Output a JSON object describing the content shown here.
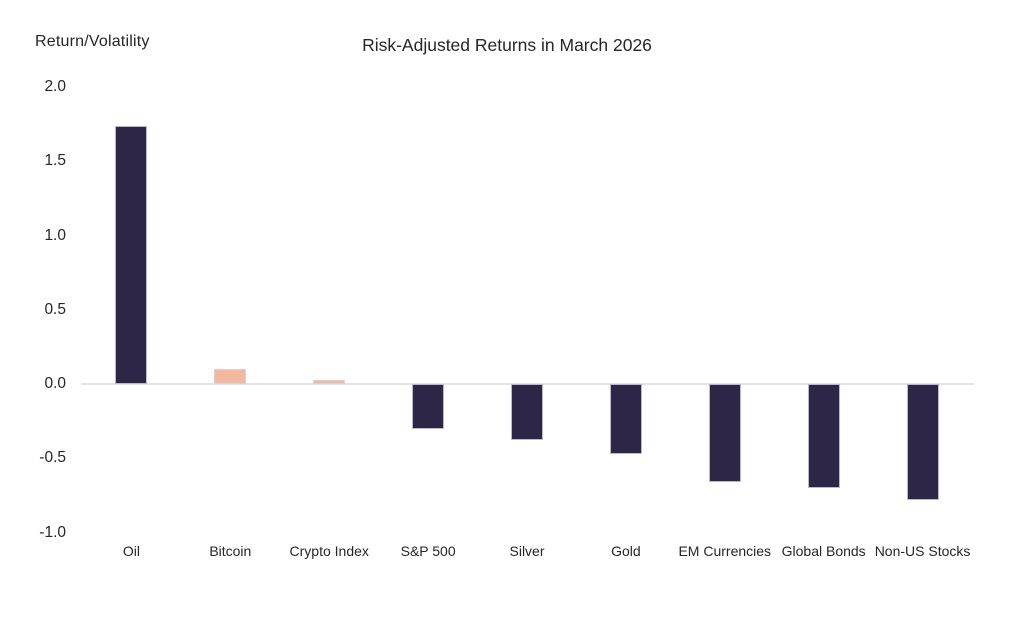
{
  "chart_data": {
    "type": "bar",
    "title": "Risk-Adjusted Returns in March 2026",
    "axis_label": "Return/Volatility",
    "xlabel": "",
    "ylabel": "Return/Volatility",
    "categories": [
      "Oil",
      "Bitcoin",
      "Crypto Index",
      "S&P 500",
      "Silver",
      "Gold",
      "EM Currencies",
      "Global Bonds",
      "Non-US Stocks"
    ],
    "values": [
      1.74,
      0.1,
      0.03,
      -0.3,
      -0.38,
      -0.47,
      -0.66,
      -0.7,
      -0.78
    ],
    "bar_colors": [
      "navy",
      "salmon",
      "salmon",
      "navy",
      "navy",
      "navy",
      "navy",
      "navy",
      "navy"
    ],
    "palette": {
      "navy": "#2D2647",
      "salmon": "#F4B79F"
    },
    "ylim": [
      -1.0,
      2.0
    ],
    "ytick_labels": [
      "2.0",
      "1.5",
      "1.0",
      "0.5",
      "0.0",
      "-0.5",
      "-1.0"
    ],
    "grid": "zero-line-only",
    "zero_line_color": "#E4E4E4",
    "legend": "none"
  }
}
